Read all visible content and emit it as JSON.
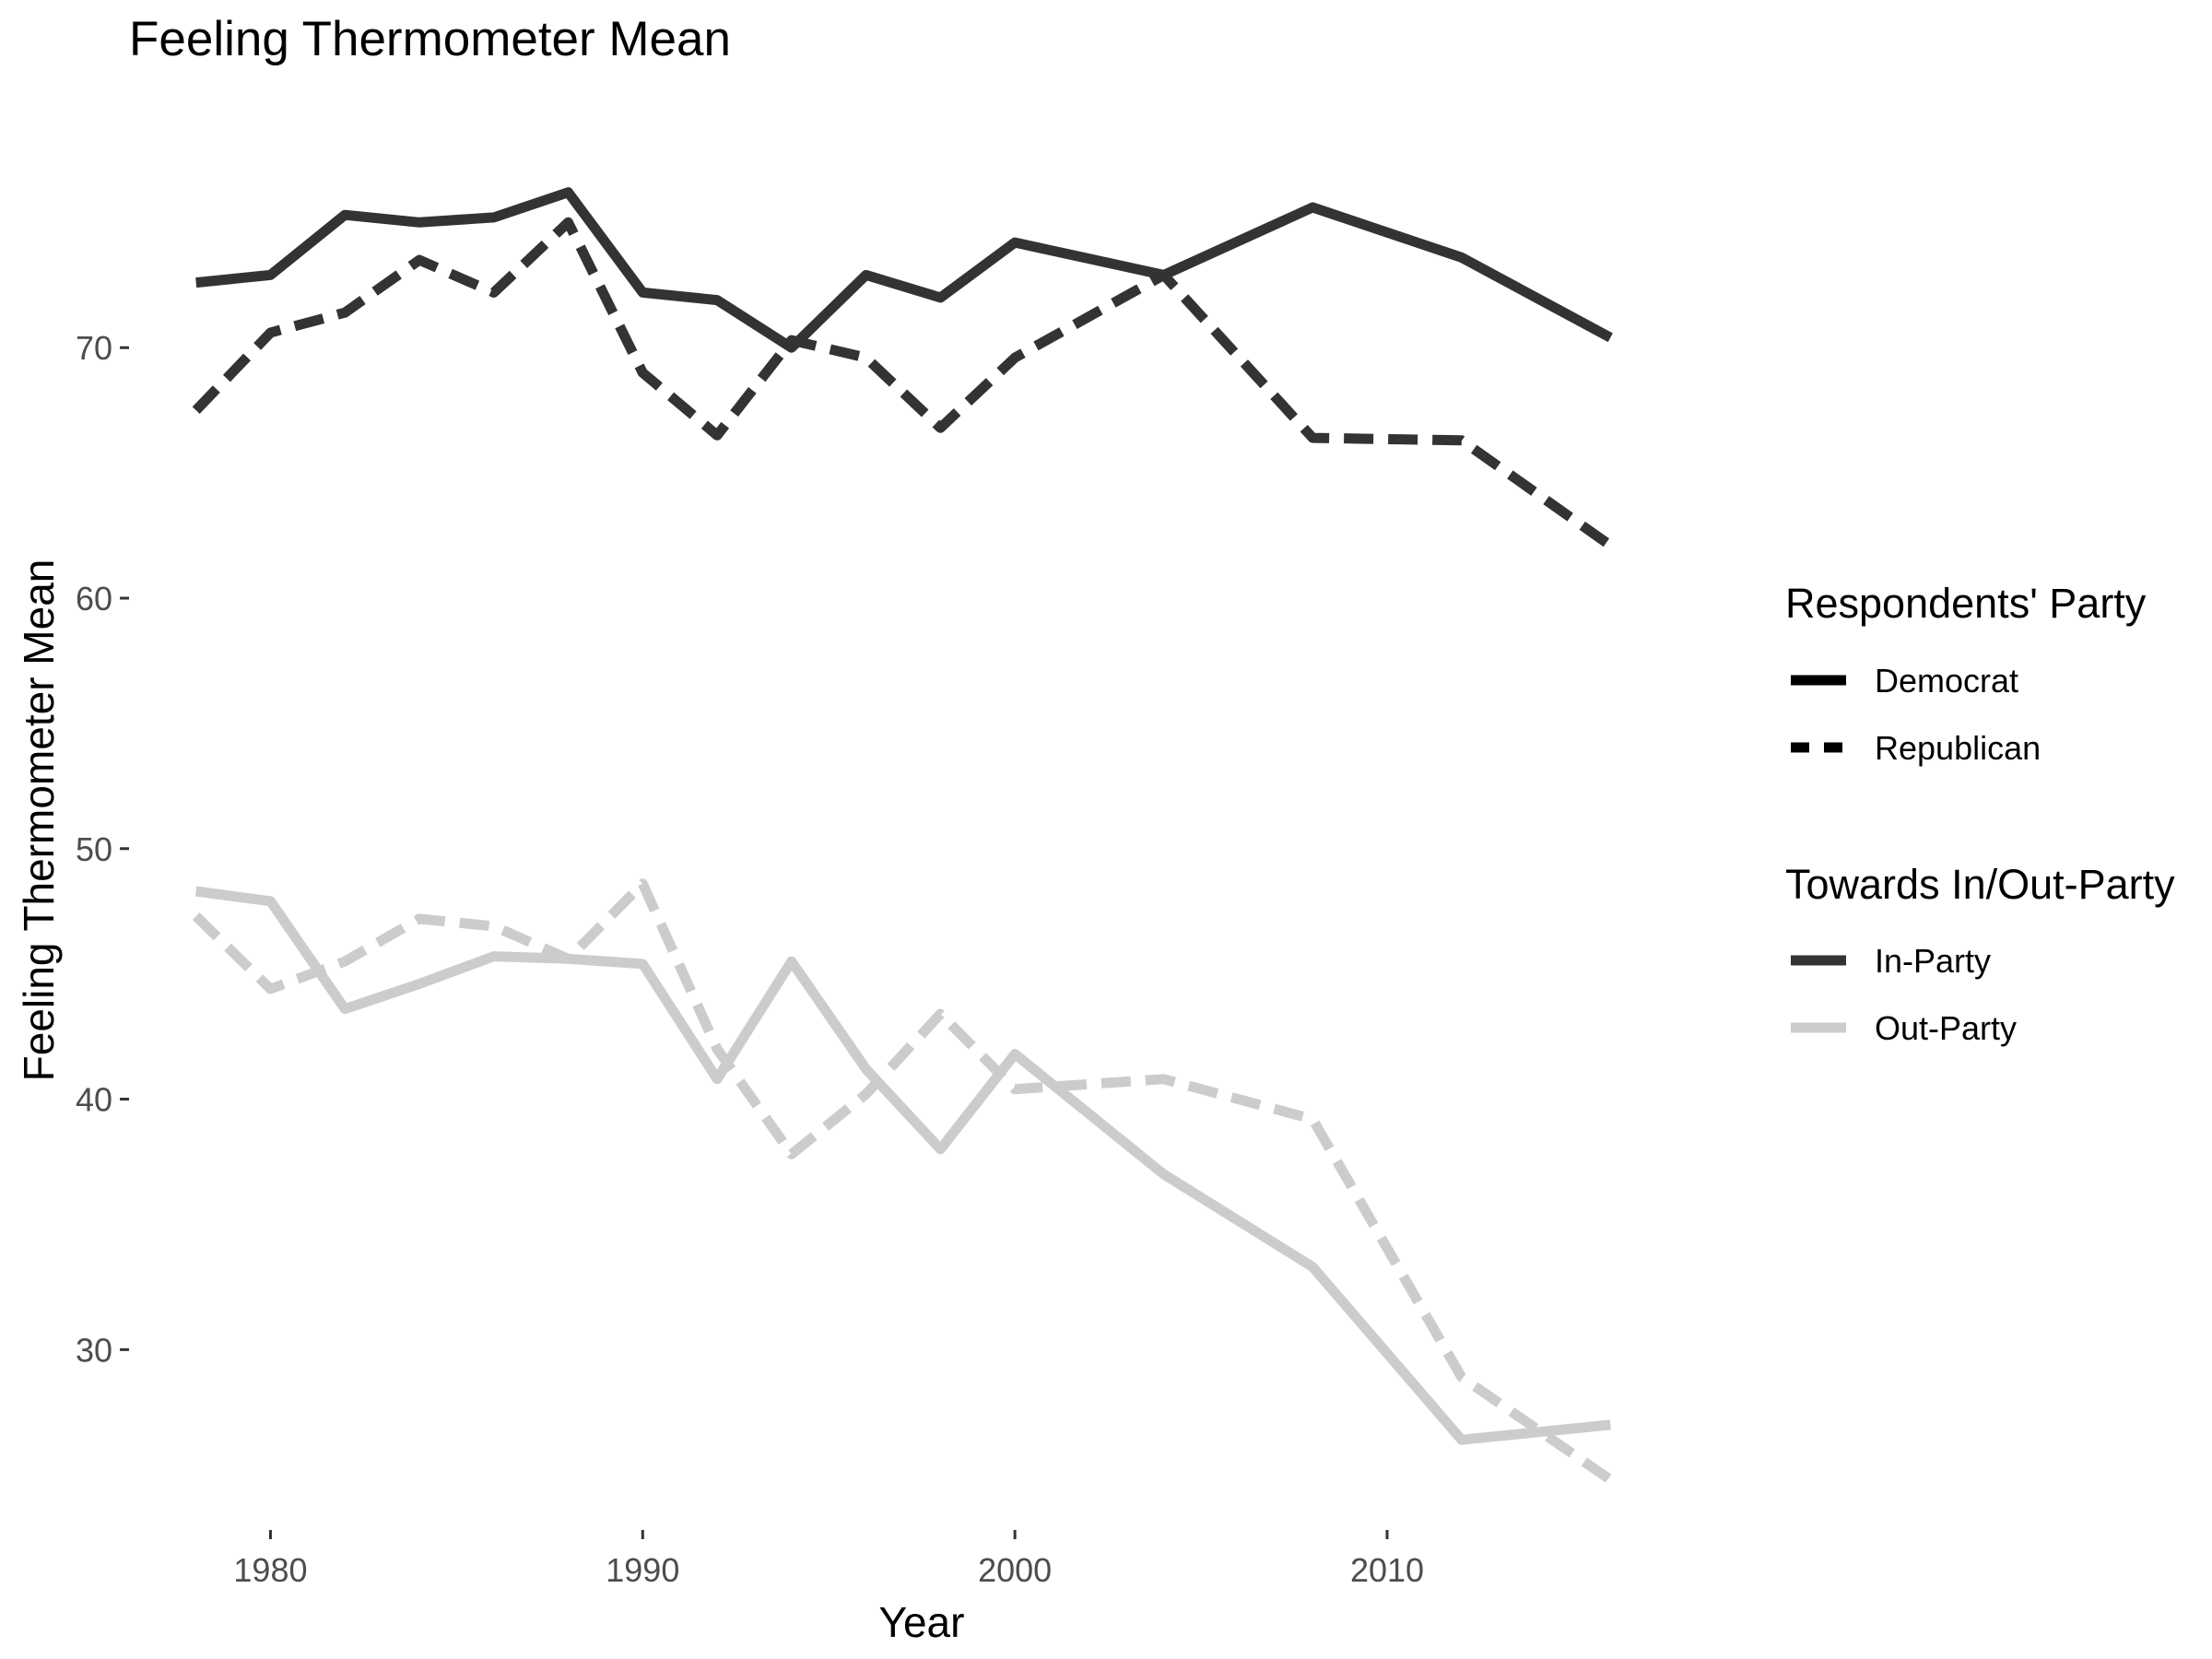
{
  "chart_data": {
    "type": "line",
    "title": "Feeling Thermometer Mean",
    "xlabel": "Year",
    "ylabel": "Feeling Thermometer Mean",
    "xlim": [
      1976.2,
      2017.8
    ],
    "ylim": [
      22.8,
      80.2
    ],
    "xticks": [
      1980,
      1990,
      2000,
      2010
    ],
    "yticks": [
      30,
      40,
      50,
      60,
      70
    ],
    "grid": false,
    "legend_position": "right",
    "legends": [
      {
        "title": "Respondents' Party",
        "items": [
          {
            "label": "Democrat",
            "linetype": "solid"
          },
          {
            "label": "Republican",
            "linetype": "dashed"
          }
        ]
      },
      {
        "title": "Towards In/Out-Party",
        "items": [
          {
            "label": "In-Party",
            "color": "#333333"
          },
          {
            "label": "Out-Party",
            "color": "#cccccc"
          }
        ]
      }
    ],
    "series": [
      {
        "party": "Democrat",
        "target": "In-Party",
        "linetype": "solid",
        "color": "#333333",
        "x": [
          1978,
          1980,
          1982,
          1984,
          1986,
          1988,
          1990,
          1992,
          1994,
          1996,
          1998,
          2000,
          2004,
          2008,
          2012,
          2016
        ],
        "y": [
          72.6,
          72.9,
          75.3,
          75.0,
          75.2,
          76.2,
          72.2,
          71.9,
          70.0,
          72.9,
          72.0,
          74.2,
          72.9,
          75.6,
          73.6,
          70.4
        ]
      },
      {
        "party": "Republican",
        "target": "In-Party",
        "linetype": "dashed",
        "color": "#333333",
        "x": [
          1978,
          1980,
          1982,
          1984,
          1986,
          1988,
          1990,
          1992,
          1994,
          1996,
          1998,
          2000,
          2004,
          2008,
          2012,
          2016
        ],
        "y": [
          67.5,
          70.6,
          71.4,
          73.5,
          72.2,
          75.0,
          69.0,
          66.5,
          70.3,
          69.6,
          66.8,
          69.6,
          72.9,
          66.4,
          66.3,
          62.1
        ]
      },
      {
        "party": "Democrat",
        "target": "Out-Party",
        "linetype": "solid",
        "color": "#cccccc",
        "x": [
          1978,
          1980,
          1982,
          1984,
          1986,
          1988,
          1990,
          1992,
          1994,
          1996,
          1998,
          2000,
          2004,
          2008,
          2012,
          2016
        ],
        "y": [
          48.3,
          47.9,
          43.6,
          44.6,
          45.7,
          45.6,
          45.4,
          40.8,
          45.5,
          41.2,
          38.0,
          41.8,
          37.0,
          33.3,
          26.4,
          27.0
        ]
      },
      {
        "party": "Republican",
        "target": "Out-Party",
        "linetype": "dashed",
        "color": "#cccccc",
        "x": [
          1978,
          1980,
          1982,
          1984,
          1986,
          1988,
          1990,
          1992,
          1994,
          1996,
          1998,
          2000,
          2004,
          2008,
          2012,
          2016
        ],
        "y": [
          47.3,
          44.4,
          45.5,
          47.2,
          46.9,
          45.6,
          48.6,
          42.0,
          37.8,
          40.2,
          43.4,
          40.4,
          40.8,
          39.2,
          28.9,
          24.8
        ]
      }
    ]
  }
}
